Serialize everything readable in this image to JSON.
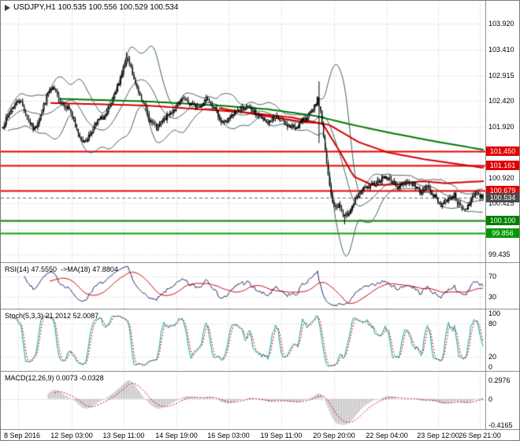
{
  "title": "USDJPY,H1 100.535 100.556 100.529 100.534",
  "symbol": "USDJPY",
  "timeframe": "H1",
  "quote": {
    "open": "100.535",
    "high": "100.556",
    "low": "100.529",
    "close": "100.534"
  },
  "colors": {
    "background": "#ffffff",
    "grid": "#c8c8c8",
    "candle": "#000000",
    "candle_up_fill": "#ffffff",
    "bands": "#3c6060",
    "level_red": "#ee0000",
    "level_green": "#008000",
    "level_green_bright": "#00a000",
    "current_price": "#555555",
    "badge_red": "#e00000",
    "badge_dark": "#4a4a4a",
    "badge_green": "#009000",
    "rsi_line": "#26266e",
    "rsi_ma": "#cc0000",
    "stoch_line": "#00a6a6",
    "stoch_signal": "#cc0000",
    "macd_hist": "#b0b0b0",
    "macd_signal": "#cc0000",
    "axis_text": "#000000",
    "separator": "#8f8f8f"
  },
  "chart_data": {
    "type": "candlestick+indicators",
    "bars": 320,
    "seed": 7,
    "noise": 0.045,
    "wick": 0.07,
    "last_close": 100.534,
    "price_axis": {
      "ylim": [
        99.3,
        104.35
      ],
      "ticks": [
        "103.920",
        "103.410",
        "102.915",
        "102.420",
        "101.920",
        "101.425",
        "100.920",
        "100.425",
        "99.435"
      ],
      "tick_values": [
        103.92,
        103.41,
        102.915,
        102.42,
        101.92,
        101.425,
        100.92,
        100.425,
        99.435
      ],
      "grid_extra": [
        99.93
      ]
    },
    "levels": [
      {
        "label": "101.450",
        "value": 101.45,
        "color": "#ee0000",
        "badge": "#e00000",
        "width": 2,
        "style": "solid"
      },
      {
        "label": "101.161",
        "value": 101.161,
        "color": "#ee0000",
        "badge": "#e00000",
        "width": 2,
        "style": "solid"
      },
      {
        "label": "100.679",
        "value": 100.679,
        "color": "#ee0000",
        "badge": "#e00000",
        "width": 2,
        "style": "solid"
      },
      {
        "label": "100.534",
        "value": 100.534,
        "color": "#666666",
        "badge": "#4a4a4a",
        "width": 1,
        "style": "dash"
      },
      {
        "label": "100.100",
        "value": 100.1,
        "color": "#008000",
        "badge": "#008000",
        "width": 2,
        "style": "solid"
      },
      {
        "label": "99.856",
        "value": 99.856,
        "color": "#00a800",
        "badge": "#009800",
        "width": 2,
        "style": "solid"
      }
    ],
    "time_axis": {
      "labels": [
        "8 Sep 2016",
        "12 Sep 03:00",
        "13 Sep 11:00",
        "14 Sep 19:00",
        "16 Sep 03:00",
        "19 Sep 11:00",
        "20 Sep 20:00",
        "22 Sep 04:00",
        "23 Sep 12:00",
        "26 Sep 21:00"
      ],
      "positions": [
        0.036,
        0.146,
        0.254,
        0.363,
        0.47,
        0.579,
        0.687,
        0.796,
        0.903,
        0.989
      ]
    },
    "close_waypoints": [
      [
        0.0,
        101.95
      ],
      [
        0.02,
        102.3
      ],
      [
        0.035,
        102.45
      ],
      [
        0.05,
        102.1
      ],
      [
        0.065,
        101.85
      ],
      [
        0.08,
        102.2
      ],
      [
        0.095,
        102.6
      ],
      [
        0.105,
        102.65
      ],
      [
        0.12,
        102.4
      ],
      [
        0.14,
        102.25
      ],
      [
        0.155,
        101.8
      ],
      [
        0.17,
        101.6
      ],
      [
        0.185,
        101.85
      ],
      [
        0.2,
        102.05
      ],
      [
        0.215,
        102.15
      ],
      [
        0.23,
        102.45
      ],
      [
        0.245,
        102.9
      ],
      [
        0.258,
        103.25
      ],
      [
        0.265,
        103.1
      ],
      [
        0.275,
        102.75
      ],
      [
        0.29,
        102.45
      ],
      [
        0.305,
        102.05
      ],
      [
        0.32,
        101.88
      ],
      [
        0.335,
        102.05
      ],
      [
        0.355,
        102.25
      ],
      [
        0.375,
        102.45
      ],
      [
        0.39,
        102.35
      ],
      [
        0.41,
        102.3
      ],
      [
        0.425,
        102.5
      ],
      [
        0.44,
        102.3
      ],
      [
        0.455,
        102.0
      ],
      [
        0.47,
        102.05
      ],
      [
        0.49,
        102.25
      ],
      [
        0.51,
        102.3
      ],
      [
        0.53,
        102.15
      ],
      [
        0.55,
        102.0
      ],
      [
        0.57,
        102.1
      ],
      [
        0.59,
        101.95
      ],
      [
        0.61,
        101.9
      ],
      [
        0.63,
        102.1
      ],
      [
        0.645,
        102.2
      ],
      [
        0.655,
        102.45
      ],
      [
        0.662,
        102.2
      ],
      [
        0.668,
        101.7
      ],
      [
        0.675,
        101.1
      ],
      [
        0.683,
        100.6
      ],
      [
        0.69,
        100.35
      ],
      [
        0.7,
        100.4
      ],
      [
        0.71,
        100.15
      ],
      [
        0.72,
        100.25
      ],
      [
        0.735,
        100.5
      ],
      [
        0.75,
        100.7
      ],
      [
        0.765,
        100.75
      ],
      [
        0.78,
        100.85
      ],
      [
        0.795,
        100.95
      ],
      [
        0.81,
        100.85
      ],
      [
        0.825,
        100.75
      ],
      [
        0.84,
        100.85
      ],
      [
        0.855,
        100.8
      ],
      [
        0.87,
        100.65
      ],
      [
        0.885,
        100.75
      ],
      [
        0.9,
        100.55
      ],
      [
        0.912,
        100.4
      ],
      [
        0.925,
        100.5
      ],
      [
        0.94,
        100.6
      ],
      [
        0.952,
        100.35
      ],
      [
        0.963,
        100.3
      ],
      [
        0.975,
        100.5
      ],
      [
        0.985,
        100.65
      ],
      [
        1.0,
        100.534
      ]
    ],
    "spikes": [
      {
        "t": 0.258,
        "high": 103.36
      },
      {
        "t": 0.657,
        "high": 102.8,
        "low": 101.6
      },
      {
        "t": 0.712,
        "low": 100.02
      }
    ],
    "overlays": {
      "bollinger": {
        "period": 20,
        "dev": 2
      },
      "ma_lines": [
        {
          "name": "ma-red-slow",
          "color": "#d40000",
          "width": 2,
          "points": [
            [
              0.1,
              102.38
            ],
            [
              0.3,
              102.33
            ],
            [
              0.5,
              102.2
            ],
            [
              0.6,
              102.1
            ],
            [
              0.68,
              101.95
            ],
            [
              0.74,
              101.62
            ],
            [
              0.8,
              101.42
            ],
            [
              0.88,
              101.28
            ],
            [
              1.0,
              101.12
            ]
          ]
        },
        {
          "name": "ma-red-fast",
          "color": "#d40000",
          "width": 2,
          "points": [
            [
              0.45,
              102.28
            ],
            [
              0.55,
              102.12
            ],
            [
              0.62,
              102.02
            ],
            [
              0.665,
              101.98
            ],
            [
              0.7,
              101.45
            ],
            [
              0.73,
              100.95
            ],
            [
              0.77,
              100.78
            ],
            [
              0.82,
              100.8
            ],
            [
              0.87,
              100.86
            ],
            [
              0.92,
              100.82
            ],
            [
              1.0,
              100.86
            ]
          ]
        },
        {
          "name": "ma-green",
          "color": "#007800",
          "width": 2,
          "points": [
            [
              0.12,
              102.46
            ],
            [
              0.3,
              102.41
            ],
            [
              0.45,
              102.33
            ],
            [
              0.55,
              102.26
            ],
            [
              0.65,
              102.13
            ],
            [
              0.72,
              101.97
            ],
            [
              0.8,
              101.81
            ],
            [
              0.9,
              101.63
            ],
            [
              1.0,
              101.47
            ]
          ]
        }
      ]
    },
    "indicators": {
      "rsi": {
        "label": "RSI(14) 47.5550  ->MA(18) 47.8804",
        "period": 14,
        "ma_period": 18,
        "value": 47.555,
        "ma_value": 47.8804,
        "levels": [
          70,
          30
        ],
        "axis_ticks": [
          "70",
          "30"
        ],
        "axis_values": [
          70,
          30
        ],
        "range": [
          9,
          94
        ]
      },
      "stoch": {
        "label": "Stoch(5,3,3) 21.2012 52.0087",
        "k": 5,
        "d": 3,
        "slowing": 3,
        "value": 21.2012,
        "signal_value": 52.0087,
        "levels": [
          80,
          20
        ],
        "axis_ticks": [
          "100",
          "80",
          "20",
          "0"
        ],
        "axis_values": [
          100,
          80,
          20,
          0
        ],
        "range": [
          -4,
          104
        ]
      },
      "macd": {
        "label": "MACD(12,26,9) 0.0073 -0.0328",
        "fast": 12,
        "slow": 26,
        "signal": 9,
        "value": 0.0073,
        "signal_value": -0.0328,
        "axis_ticks": [
          "0.2976",
          "0",
          "-0.4165"
        ],
        "axis_values": [
          0.2976,
          0,
          -0.4165
        ],
        "pos_extreme": 0.2976,
        "neg_extreme": -0.4165,
        "range": [
          -0.46,
          0.41
        ]
      }
    }
  }
}
